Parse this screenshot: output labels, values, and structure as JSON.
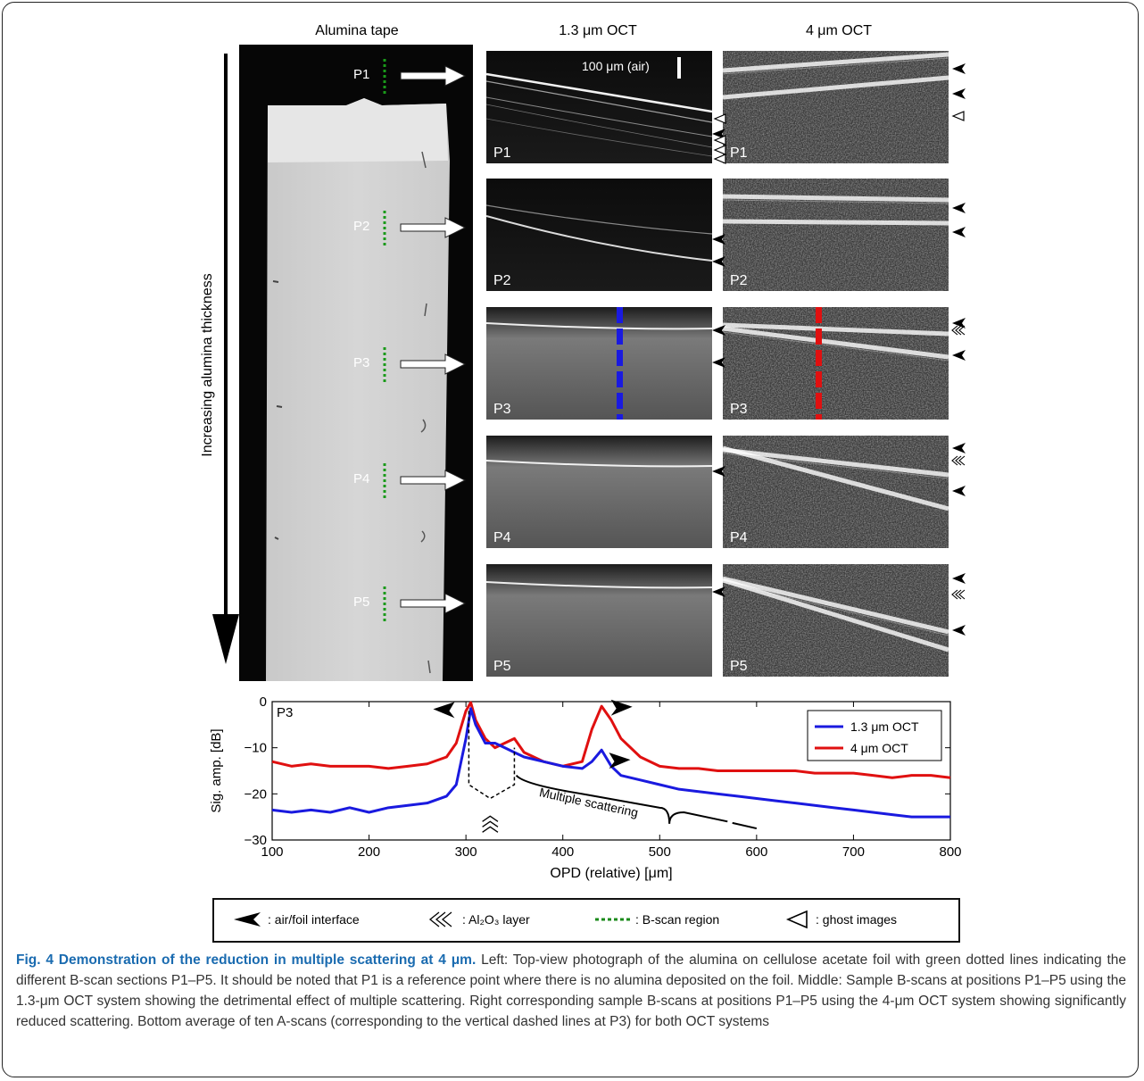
{
  "figure": {
    "col_titles": [
      "Alumina tape",
      "1.3 μm OCT",
      "4 μm OCT"
    ],
    "vertical_axis_label": "Increasing alumina thickness",
    "positions": [
      "P1",
      "P2",
      "P3",
      "P4",
      "P5"
    ],
    "scale_bar_label": "100 μm (air)"
  },
  "chart_data": {
    "type": "line",
    "panel_label": "P3",
    "xlabel": "OPD (relative) [μm]",
    "ylabel": "Sig. amp. [dB]",
    "xlim": [
      100,
      800
    ],
    "ylim": [
      -30,
      0
    ],
    "xticks": [
      "100",
      "200",
      "300",
      "400",
      "500",
      "600",
      "700",
      "800"
    ],
    "yticks": [
      "0",
      "−10",
      "−20",
      "−30"
    ],
    "grid": false,
    "legend_position": "top-right",
    "annotation": "Multiple scattering",
    "series": [
      {
        "name": "1.3 μm OCT",
        "color": "#1a1adf",
        "x": [
          100,
          120,
          140,
          160,
          180,
          200,
          220,
          240,
          260,
          280,
          290,
          300,
          305,
          310,
          320,
          330,
          340,
          350,
          360,
          380,
          400,
          420,
          430,
          440,
          450,
          460,
          480,
          500,
          520,
          540,
          560,
          580,
          600,
          620,
          640,
          660,
          680,
          700,
          720,
          740,
          760,
          780,
          800
        ],
        "y": [
          -23.5,
          -24,
          -23.5,
          -24,
          -23,
          -24,
          -23,
          -22.5,
          -22,
          -20.5,
          -18,
          -8,
          -1.5,
          -5,
          -9,
          -9,
          -10,
          -11,
          -12,
          -13,
          -14,
          -14.5,
          -13,
          -10.5,
          -14,
          -16,
          -17,
          -18,
          -19,
          -19.5,
          -20,
          -20.5,
          -21,
          -21.5,
          -22,
          -22.5,
          -23,
          -23.5,
          -24,
          -24.5,
          -25,
          -25,
          -25
        ]
      },
      {
        "name": "4 μm OCT",
        "color": "#e01010",
        "x": [
          100,
          120,
          140,
          160,
          180,
          200,
          220,
          240,
          260,
          280,
          290,
          300,
          305,
          310,
          320,
          330,
          340,
          350,
          360,
          380,
          400,
          420,
          430,
          440,
          450,
          460,
          480,
          500,
          520,
          540,
          560,
          580,
          600,
          620,
          640,
          660,
          680,
          700,
          720,
          740,
          760,
          780,
          800
        ],
        "y": [
          -13,
          -14,
          -13.5,
          -14,
          -14,
          -14,
          -14.5,
          -14,
          -13.5,
          -12,
          -9,
          -2,
          -0.2,
          -4,
          -8,
          -10,
          -9,
          -8,
          -11,
          -13,
          -14,
          -13,
          -6,
          -1,
          -4,
          -8,
          -12,
          -14,
          -14.5,
          -14.5,
          -15,
          -15,
          -15,
          -15,
          -15,
          -15.5,
          -15.5,
          -15.5,
          -16,
          -16.5,
          -16,
          -16,
          -16.5
        ]
      }
    ]
  },
  "legend": {
    "items": [
      ": air/foil interface",
      ": Al₂O₃ layer",
      ": B-scan region",
      ": ghost images"
    ]
  },
  "caption": {
    "title": "Fig. 4 Demonstration of the reduction in multiple scattering at 4 μm.",
    "body": " Left: Top-view photograph of the alumina on cellulose acetate foil with green dotted lines indicating the different B-scan sections P1–P5. It should be noted that P1 is a reference point where there is no alumina deposited on the foil. Middle: Sample B-scans at positions P1–P5 using the 1.3-μm OCT system showing the detrimental effect of multiple scattering. Right corresponding sample B-scans at positions P1–P5 using the 4-μm OCT system showing significantly reduced scattering. Bottom average of ten A-scans (corresponding to the vertical dashed lines at P3) for both OCT systems"
  }
}
